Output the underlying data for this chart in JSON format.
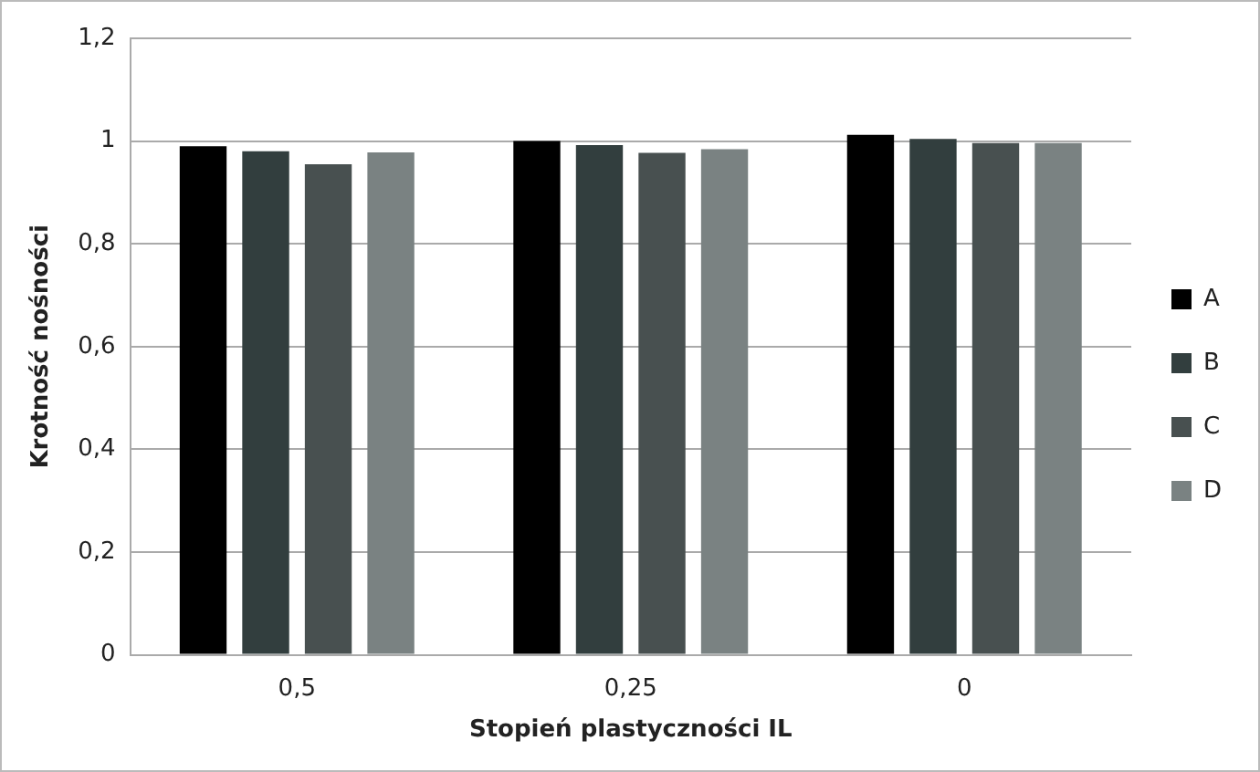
{
  "chart_data": {
    "type": "bar",
    "xlabel": "Stopień plastyczności IL",
    "ylabel": "Krotność nośności",
    "categories": [
      "0,5",
      "0,25",
      "0"
    ],
    "series": [
      {
        "name": "A",
        "color": "#000000",
        "values": [
          0.99,
          1.0,
          1.012
        ]
      },
      {
        "name": "B",
        "color": "#323e3e",
        "values": [
          0.98,
          0.992,
          1.004
        ]
      },
      {
        "name": "C",
        "color": "#485050",
        "values": [
          0.955,
          0.977,
          0.996
        ]
      },
      {
        "name": "D",
        "color": "#7a8282",
        "values": [
          0.978,
          0.984,
          0.996
        ]
      }
    ],
    "ylim": [
      0,
      1.2
    ],
    "yticks": [
      {
        "value": 0,
        "label": "0"
      },
      {
        "value": 0.2,
        "label": "0,2"
      },
      {
        "value": 0.4,
        "label": "0,4"
      },
      {
        "value": 0.6,
        "label": "0,6"
      },
      {
        "value": 0.8,
        "label": "0,8"
      },
      {
        "value": 1,
        "label": "1"
      },
      {
        "value": 1.2,
        "label": "1,2"
      }
    ],
    "grid": "y",
    "legend": "right"
  }
}
